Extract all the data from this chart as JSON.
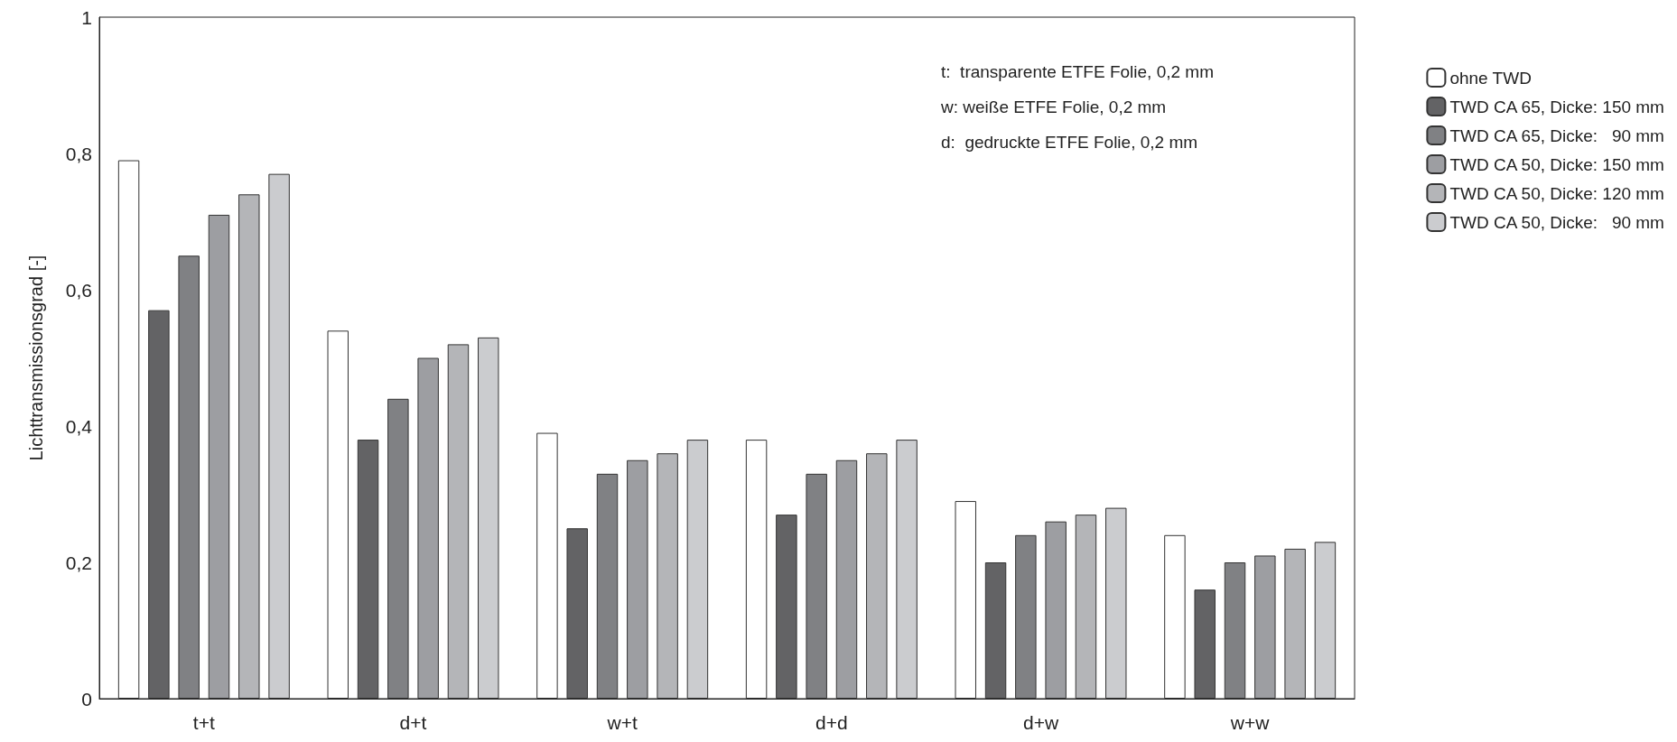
{
  "chart_data": {
    "type": "bar",
    "ylabel": "Lichttransmissionsgrad [-]",
    "categories": [
      "t+t",
      "d+t",
      "w+t",
      "d+d",
      "d+w",
      "w+w"
    ],
    "series": [
      {
        "name": "ohne TWD",
        "color": "#ffffff",
        "values": [
          0.79,
          0.54,
          0.39,
          0.38,
          0.29,
          0.24
        ]
      },
      {
        "name": "TWD CA 65, Dicke: 150 mm",
        "color": "#636365",
        "values": [
          0.57,
          0.38,
          0.25,
          0.27,
          0.2,
          0.16
        ]
      },
      {
        "name": "TWD CA 65, Dicke:   90 mm",
        "color": "#808184",
        "values": [
          0.65,
          0.44,
          0.33,
          0.33,
          0.24,
          0.2
        ]
      },
      {
        "name": "TWD CA 50, Dicke: 150 mm",
        "color": "#9d9ea2",
        "values": [
          0.71,
          0.5,
          0.35,
          0.35,
          0.26,
          0.21
        ]
      },
      {
        "name": "TWD CA 50, Dicke: 120 mm",
        "color": "#b4b5b8",
        "values": [
          0.74,
          0.52,
          0.36,
          0.36,
          0.27,
          0.22
        ]
      },
      {
        "name": "TWD CA 50, Dicke:   90 mm",
        "color": "#cbcccf",
        "values": [
          0.77,
          0.53,
          0.38,
          0.38,
          0.28,
          0.23
        ]
      }
    ],
    "ylim": [
      0,
      1
    ],
    "yticks": [
      0,
      {
        "value": 0.2,
        "label": "0,2"
      },
      {
        "value": 0.4,
        "label": "0,4"
      },
      {
        "value": 0.6,
        "label": "0,6"
      },
      {
        "value": 0.8,
        "label": "0,8"
      },
      1
    ],
    "annotations": [
      "t:  transparente ETFE Folie, 0,2 mm",
      "w: weiße ETFE Folie, 0,2 mm",
      "d:  gedruckte ETFE Folie, 0,2 mm"
    ],
    "grid": false,
    "legend": "right"
  }
}
